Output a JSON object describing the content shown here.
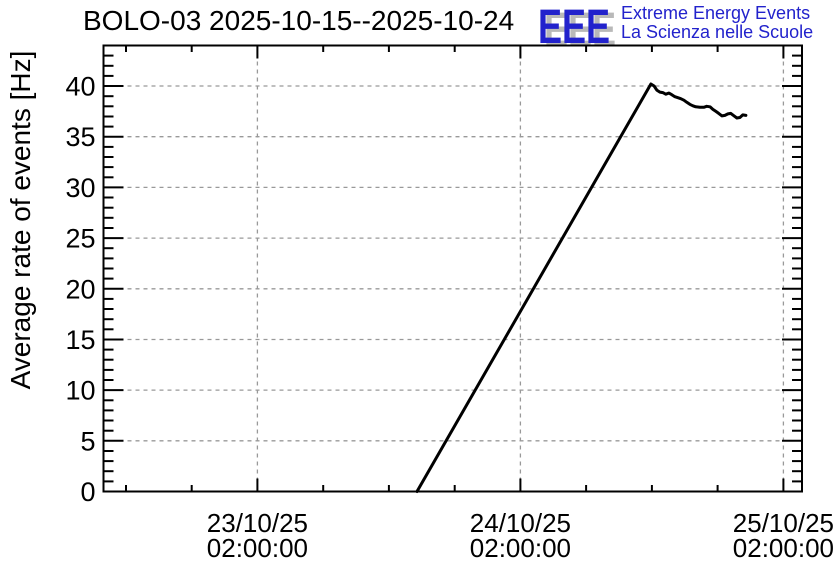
{
  "header": {
    "title": "BOLO-03 2025-10-15--2025-10-24"
  },
  "logo": {
    "acronym": "EEE",
    "tagline_line1": "Extreme Energy Events",
    "tagline_line2": "La Scienza nelle Scuole",
    "color": "#2222cc",
    "shadow_color": "#b9b9b9"
  },
  "chart_data": {
    "type": "line",
    "title": "BOLO-03 2025-10-15--2025-10-24",
    "station": "BOLO-03",
    "date_range": "2025-10-15--2025-10-24",
    "xlabel": "",
    "ylabel": "Average rate of events [Hz]",
    "ylim": [
      0,
      44
    ],
    "y_major_ticks": [
      0,
      5,
      10,
      15,
      20,
      25,
      30,
      35,
      40
    ],
    "y_minor_step": 1,
    "x_hours_range": [
      -14.05,
      49.7
    ],
    "x_hours_reference": "hours relative to 23/10/25 02:00:00",
    "x_major_ticks": [
      {
        "hours": 0,
        "date": "23/10/25",
        "time": "02:00:00"
      },
      {
        "hours": 24,
        "date": "24/10/25",
        "time": "02:00:00"
      },
      {
        "hours": 48,
        "date": "25/10/25",
        "time": "02:00:00"
      }
    ],
    "x_minor_step_hours": 6,
    "grid": {
      "show": true,
      "style": "dashed",
      "color": "#999999"
    },
    "legend": {
      "show": false
    },
    "series": [
      {
        "name": "average rate of events",
        "color": "#000000",
        "width": 3,
        "points_hours_hz": [
          [
            14.56,
            0.0
          ],
          [
            35.91,
            40.2
          ],
          [
            36.2,
            40.0
          ],
          [
            36.45,
            39.6
          ],
          [
            36.73,
            39.4
          ],
          [
            37.0,
            39.35
          ],
          [
            37.27,
            39.2
          ],
          [
            37.55,
            39.3
          ],
          [
            37.82,
            39.15
          ],
          [
            38.1,
            38.95
          ],
          [
            38.37,
            38.85
          ],
          [
            38.64,
            38.75
          ],
          [
            38.92,
            38.6
          ],
          [
            39.19,
            38.4
          ],
          [
            39.46,
            38.2
          ],
          [
            39.74,
            38.05
          ],
          [
            40.0,
            37.95
          ],
          [
            40.38,
            37.9
          ],
          [
            40.74,
            37.9
          ],
          [
            41.0,
            38.0
          ],
          [
            41.3,
            37.95
          ],
          [
            41.57,
            37.7
          ],
          [
            41.84,
            37.5
          ],
          [
            42.1,
            37.3
          ],
          [
            42.4,
            37.05
          ],
          [
            42.66,
            37.1
          ],
          [
            42.94,
            37.25
          ],
          [
            43.2,
            37.3
          ],
          [
            43.5,
            37.05
          ],
          [
            43.76,
            36.85
          ],
          [
            44.03,
            36.9
          ],
          [
            44.3,
            37.15
          ],
          [
            44.58,
            37.1
          ]
        ]
      }
    ]
  }
}
